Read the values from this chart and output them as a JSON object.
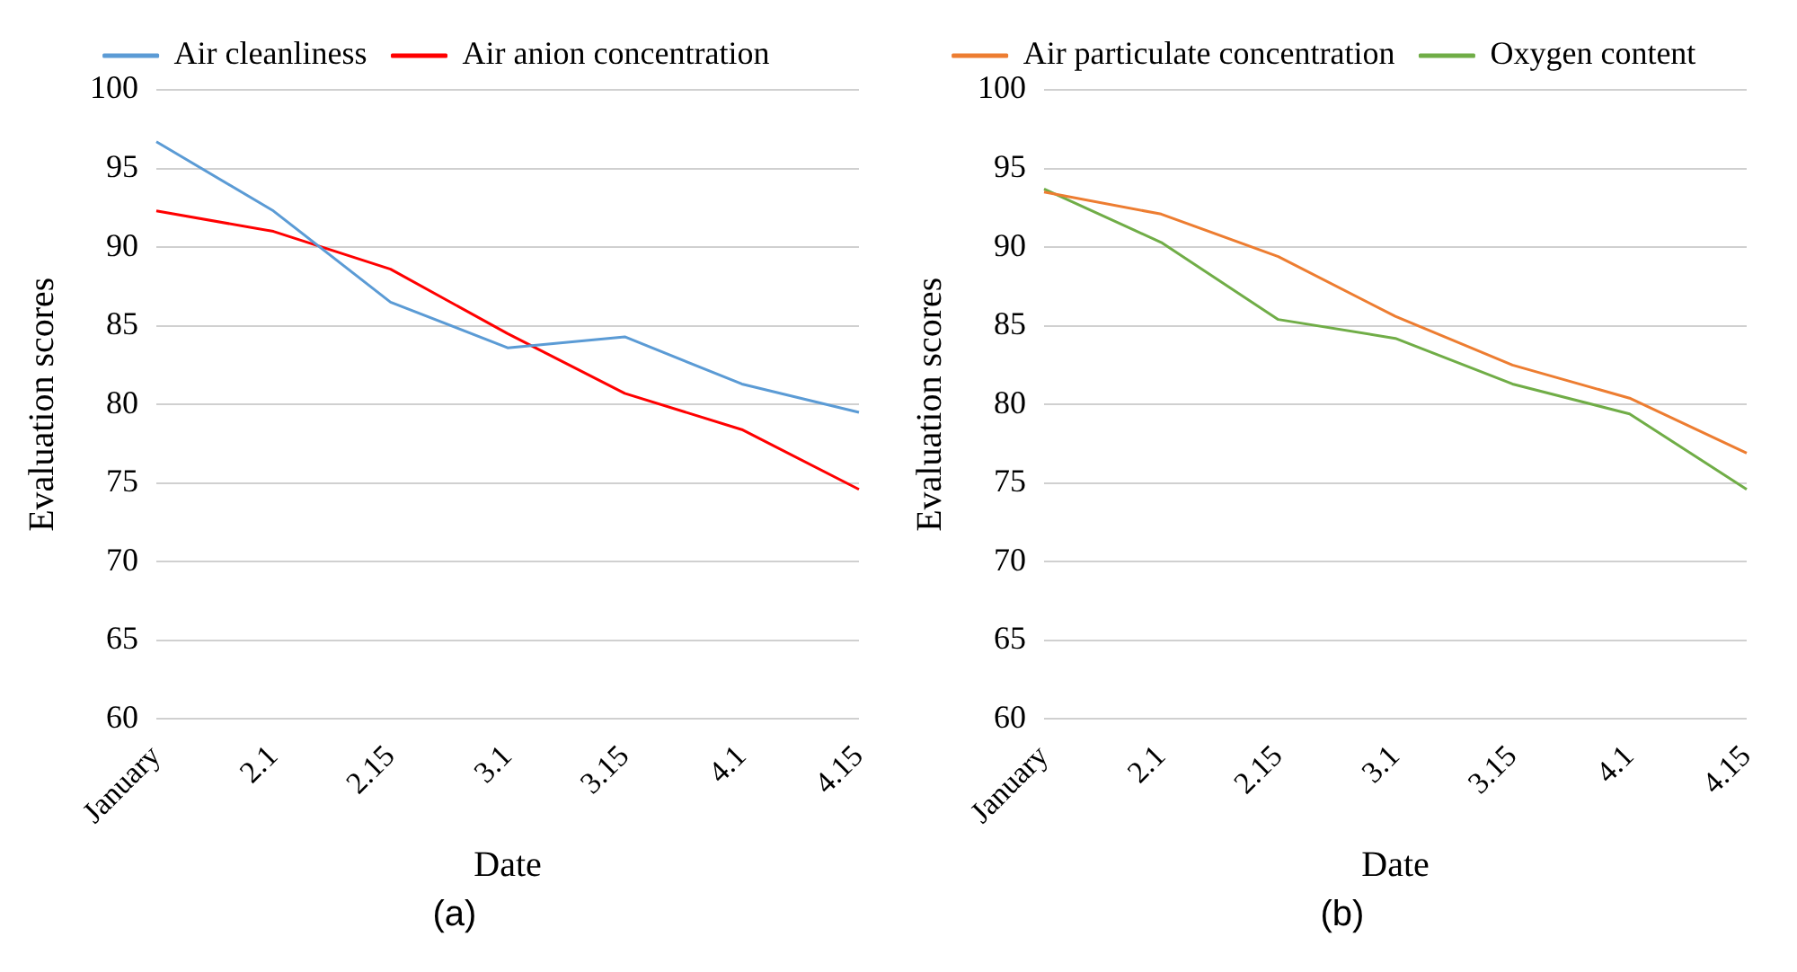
{
  "chart_data": [
    {
      "type": "line",
      "xlabel": "Date",
      "ylabel": "Evaluation scores",
      "categories": [
        "January",
        "2.1",
        "2.15",
        "3.1",
        "3.15",
        "4.1",
        "4.15"
      ],
      "series": [
        {
          "name": "Air cleanliness",
          "color": "#5b9bd5",
          "values": [
            96.7,
            92.3,
            86.5,
            83.6,
            84.3,
            81.3,
            79.5
          ]
        },
        {
          "name": "Air anion concentration",
          "color": "#ff0000",
          "values": [
            92.3,
            91.0,
            88.6,
            84.5,
            80.7,
            78.4,
            74.6
          ]
        }
      ],
      "ylim": [
        60,
        100
      ],
      "yticks": [
        60,
        65,
        70,
        75,
        80,
        85,
        90,
        95,
        100
      ],
      "grid": "y",
      "legend": "top",
      "marker": "none",
      "annotations": [
        "(a)"
      ]
    },
    {
      "type": "line",
      "xlabel": "Date",
      "ylabel": "Evaluation scores",
      "categories": [
        "January",
        "2.1",
        "2.15",
        "3.1",
        "3.15",
        "4.1",
        "4.15"
      ],
      "series": [
        {
          "name": "Air particulate concentration",
          "color": "#ed7d31",
          "values": [
            93.5,
            92.1,
            89.4,
            85.6,
            82.5,
            80.4,
            76.9
          ]
        },
        {
          "name": "Oxygen content",
          "color": "#70ad47",
          "values": [
            93.7,
            90.3,
            85.4,
            84.2,
            81.3,
            79.4,
            74.6
          ]
        }
      ],
      "ylim": [
        60,
        100
      ],
      "yticks": [
        60,
        65,
        70,
        75,
        80,
        85,
        90,
        95,
        100
      ],
      "grid": "y",
      "legend": "top",
      "marker": "none",
      "annotations": [
        "(b)"
      ]
    }
  ]
}
